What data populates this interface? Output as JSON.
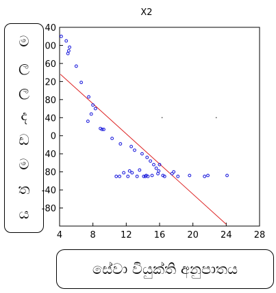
{
  "chart_data": {
    "type": "scatter",
    "title": "X2",
    "xlabel": "සේවා වියුක්ති අනුපාතය",
    "ylabel_chars": [
      "ම",
      "ල",
      "ල",
      "ද",
      "ඩ",
      "ම",
      "ත",
      "ය"
    ],
    "xlim": [
      4,
      28
    ],
    "ylim": [
      -80,
      140
    ],
    "x_ticks": [
      4,
      8,
      12,
      16,
      20,
      24,
      28
    ],
    "y_ticks": [
      140,
      120,
      100,
      80,
      60,
      40,
      20,
      0,
      -20,
      -40,
      -60,
      -80
    ],
    "y_tick_labels": [
      "40",
      "00",
      "60",
      "20",
      "80",
      "40",
      "0",
      "40",
      "80",
      "-40",
      "-80"
    ],
    "grid": false,
    "marker_color": "#2222dd",
    "fit_line_color": "#dd2020",
    "fit_line": {
      "x": [
        4.1,
        24.0
      ],
      "y": [
        88,
        -78
      ]
    },
    "points": [
      {
        "x": 4.2,
        "y": 130
      },
      {
        "x": 4.8,
        "y": 125
      },
      {
        "x": 5.1,
        "y": 114
      },
      {
        "x": 5.2,
        "y": 118
      },
      {
        "x": 5.0,
        "y": 111
      },
      {
        "x": 6.0,
        "y": 97
      },
      {
        "x": 6.6,
        "y": 79
      },
      {
        "x": 7.5,
        "y": 63
      },
      {
        "x": 8.0,
        "y": 54
      },
      {
        "x": 8.3,
        "y": 50
      },
      {
        "x": 7.8,
        "y": 44
      },
      {
        "x": 7.4,
        "y": 36
      },
      {
        "x": 8.9,
        "y": 28
      },
      {
        "x": 9.1,
        "y": 27
      },
      {
        "x": 9.3,
        "y": 27
      },
      {
        "x": 10.3,
        "y": 17
      },
      {
        "x": 11.3,
        "y": 11
      },
      {
        "x": 12.6,
        "y": 8
      },
      {
        "x": 13.0,
        "y": 4
      },
      {
        "x": 13.9,
        "y": 0
      },
      {
        "x": 14.5,
        "y": -4
      },
      {
        "x": 14.9,
        "y": -8
      },
      {
        "x": 15.3,
        "y": -12
      },
      {
        "x": 15.6,
        "y": -16
      },
      {
        "x": 16.0,
        "y": -12
      },
      {
        "x": 15.9,
        "y": -19
      },
      {
        "x": 16.4,
        "y": -24
      },
      {
        "x": 10.8,
        "y": -25
      },
      {
        "x": 11.2,
        "y": -25
      },
      {
        "x": 11.7,
        "y": -21
      },
      {
        "x": 12.2,
        "y": -25
      },
      {
        "x": 12.4,
        "y": -19
      },
      {
        "x": 12.7,
        "y": -21
      },
      {
        "x": 13.3,
        "y": -25
      },
      {
        "x": 13.6,
        "y": -18
      },
      {
        "x": 14.1,
        "y": -25
      },
      {
        "x": 14.4,
        "y": -24
      },
      {
        "x": 14.6,
        "y": -25
      },
      {
        "x": 15.1,
        "y": -24
      },
      {
        "x": 15.8,
        "y": -22
      },
      {
        "x": 16.6,
        "y": -25
      },
      {
        "x": 17.5,
        "y": -22
      },
      {
        "x": 17.7,
        "y": -20
      },
      {
        "x": 18.2,
        "y": -25
      },
      {
        "x": 19.6,
        "y": -24
      },
      {
        "x": 21.4,
        "y": -25
      },
      {
        "x": 21.8,
        "y": -24
      },
      {
        "x": 24.1,
        "y": -24
      },
      {
        "x": 14.3,
        "y": -25
      }
    ],
    "stray_points": [
      {
        "x": 16.3,
        "y": 40
      },
      {
        "x": 22.8,
        "y": 40
      }
    ]
  }
}
